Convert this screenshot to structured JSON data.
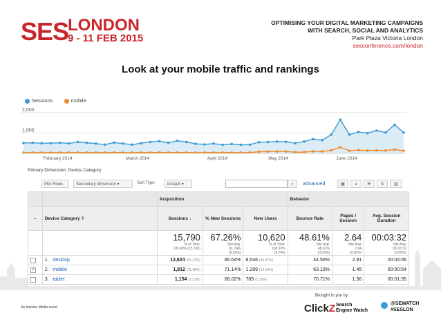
{
  "header": {
    "brand_ses": "SES",
    "brand_london": "LONDON",
    "dates": "9 - 11 FEB 2015",
    "tagline_line1": "OPTIMISING YOUR DIGITAL MARKETING CAMPAIGNS",
    "tagline_line2": "WITH SEARCH, SOCIAL AND ANALYTICS",
    "venue": "Park Plaza Victoria London",
    "url": "sesconference.com/london"
  },
  "slide_title": "Look at your mobile traffic and rankings",
  "chart_data": {
    "type": "line",
    "legend": [
      "Sessions",
      "mobile"
    ],
    "yticks": [
      "2,000",
      "1,000"
    ],
    "ylim": [
      0,
      2300
    ],
    "xticks": [
      "February 2014",
      "March 2014",
      "April 2014",
      "May 2014",
      "June 2014"
    ],
    "grid": true,
    "colors": {
      "Sessions": "#3d9bd4",
      "mobile": "#f08a24"
    },
    "series": [
      {
        "name": "Sessions",
        "values": [
          510,
          520,
          500,
          500,
          520,
          490,
          560,
          520,
          480,
          430,
          530,
          480,
          430,
          500,
          560,
          600,
          520,
          620,
          560,
          470,
          440,
          480,
          420,
          460,
          420,
          430,
          550,
          560,
          580,
          570,
          500,
          580,
          700,
          650,
          920,
          1650,
          920,
          1050,
          990,
          1120,
          1020,
          1400,
          1020
        ]
      },
      {
        "name": "mobile",
        "values": [
          40,
          40,
          40,
          38,
          40,
          40,
          45,
          40,
          42,
          40,
          45,
          40,
          40,
          42,
          42,
          45,
          44,
          46,
          45,
          40,
          40,
          42,
          40,
          42,
          40,
          40,
          80,
          90,
          95,
          95,
          60,
          60,
          100,
          100,
          150,
          300,
          130,
          160,
          140,
          150,
          140,
          190,
          130
        ]
      }
    ]
  },
  "primary_dimension": {
    "label": "Primary Dimension:",
    "value": "Device Category"
  },
  "toolbar": {
    "plot_rows": "Plot Rows",
    "secondary": "Secondary dimension",
    "sort_type": "Sort Type:",
    "sort_value": "Default",
    "advanced": "advanced"
  },
  "table": {
    "group_acquisition": "Acquisition",
    "group_behavior": "Behavior",
    "col_device": "Device Category",
    "col_sessions": "Sessions",
    "col_new_sessions": "% New Sessions",
    "col_new_users": "New Users",
    "col_bounce": "Bounce Rate",
    "col_pages": "Pages / Session",
    "col_duration": "Avg. Session Duration",
    "totals": {
      "sessions": "15,790",
      "sessions_sub1": "% of Total:",
      "sessions_sub2": "100.00% (15,790)",
      "new_sessions": "67.26%",
      "new_sessions_sub1": "Site Avg:",
      "new_sessions_sub2": "61.74%",
      "new_sessions_sub3": "(8.93%)",
      "new_users": "10,620",
      "new_users_sub1": "% of Total:",
      "new_users_sub2": "108.93%",
      "new_users_sub3": "(9,749)",
      "bounce": "48.61%",
      "bounce_sub1": "Site Avg:",
      "bounce_sub2": "48.61%",
      "bounce_sub3": "(0.00%)",
      "pages": "2.64",
      "pages_sub1": "Site Avg:",
      "pages_sub2": "2.64",
      "pages_sub3": "(0.00%)",
      "duration": "00:03:32",
      "duration_sub1": "Site Avg:",
      "duration_sub2": "00:03:32",
      "duration_sub3": "(0.00%)"
    },
    "rows": [
      {
        "num": "1.",
        "device": "desktop",
        "sessions": "12,824",
        "sessions_pct": "(81.22%)",
        "new_sessions": "66.64%",
        "new_users": "8,546",
        "new_users_pct": "(80.47%)",
        "bounce": "44.56%",
        "pages": "2.91",
        "duration": "00:04:06"
      },
      {
        "num": "2.",
        "device": "mobile",
        "sessions": "1,812",
        "sessions_pct": "(11.48%)",
        "new_sessions": "71.14%",
        "new_users": "1,289",
        "new_users_pct": "(12.14%)",
        "bounce": "63.19%",
        "pages": "1.45",
        "duration": "00:00:54"
      },
      {
        "num": "3.",
        "device": "tablet",
        "sessions": "1,154",
        "sessions_pct": "(7.31%)",
        "new_sessions": "68.02%",
        "new_users": "785",
        "new_users_pct": "(7.39%)",
        "bounce": "70.71%",
        "pages": "1.56",
        "duration": "00:01:35"
      }
    ]
  },
  "footer": {
    "brought": "Brought to you by:",
    "clickz_a": "Click",
    "clickz_b": "Z",
    "sew_line1": "Search",
    "sew_line2": "Engine Watch",
    "twitter1": "@SEWATCH",
    "twitter2": "#SESLON",
    "left_logo": "An Incisive Media event"
  }
}
